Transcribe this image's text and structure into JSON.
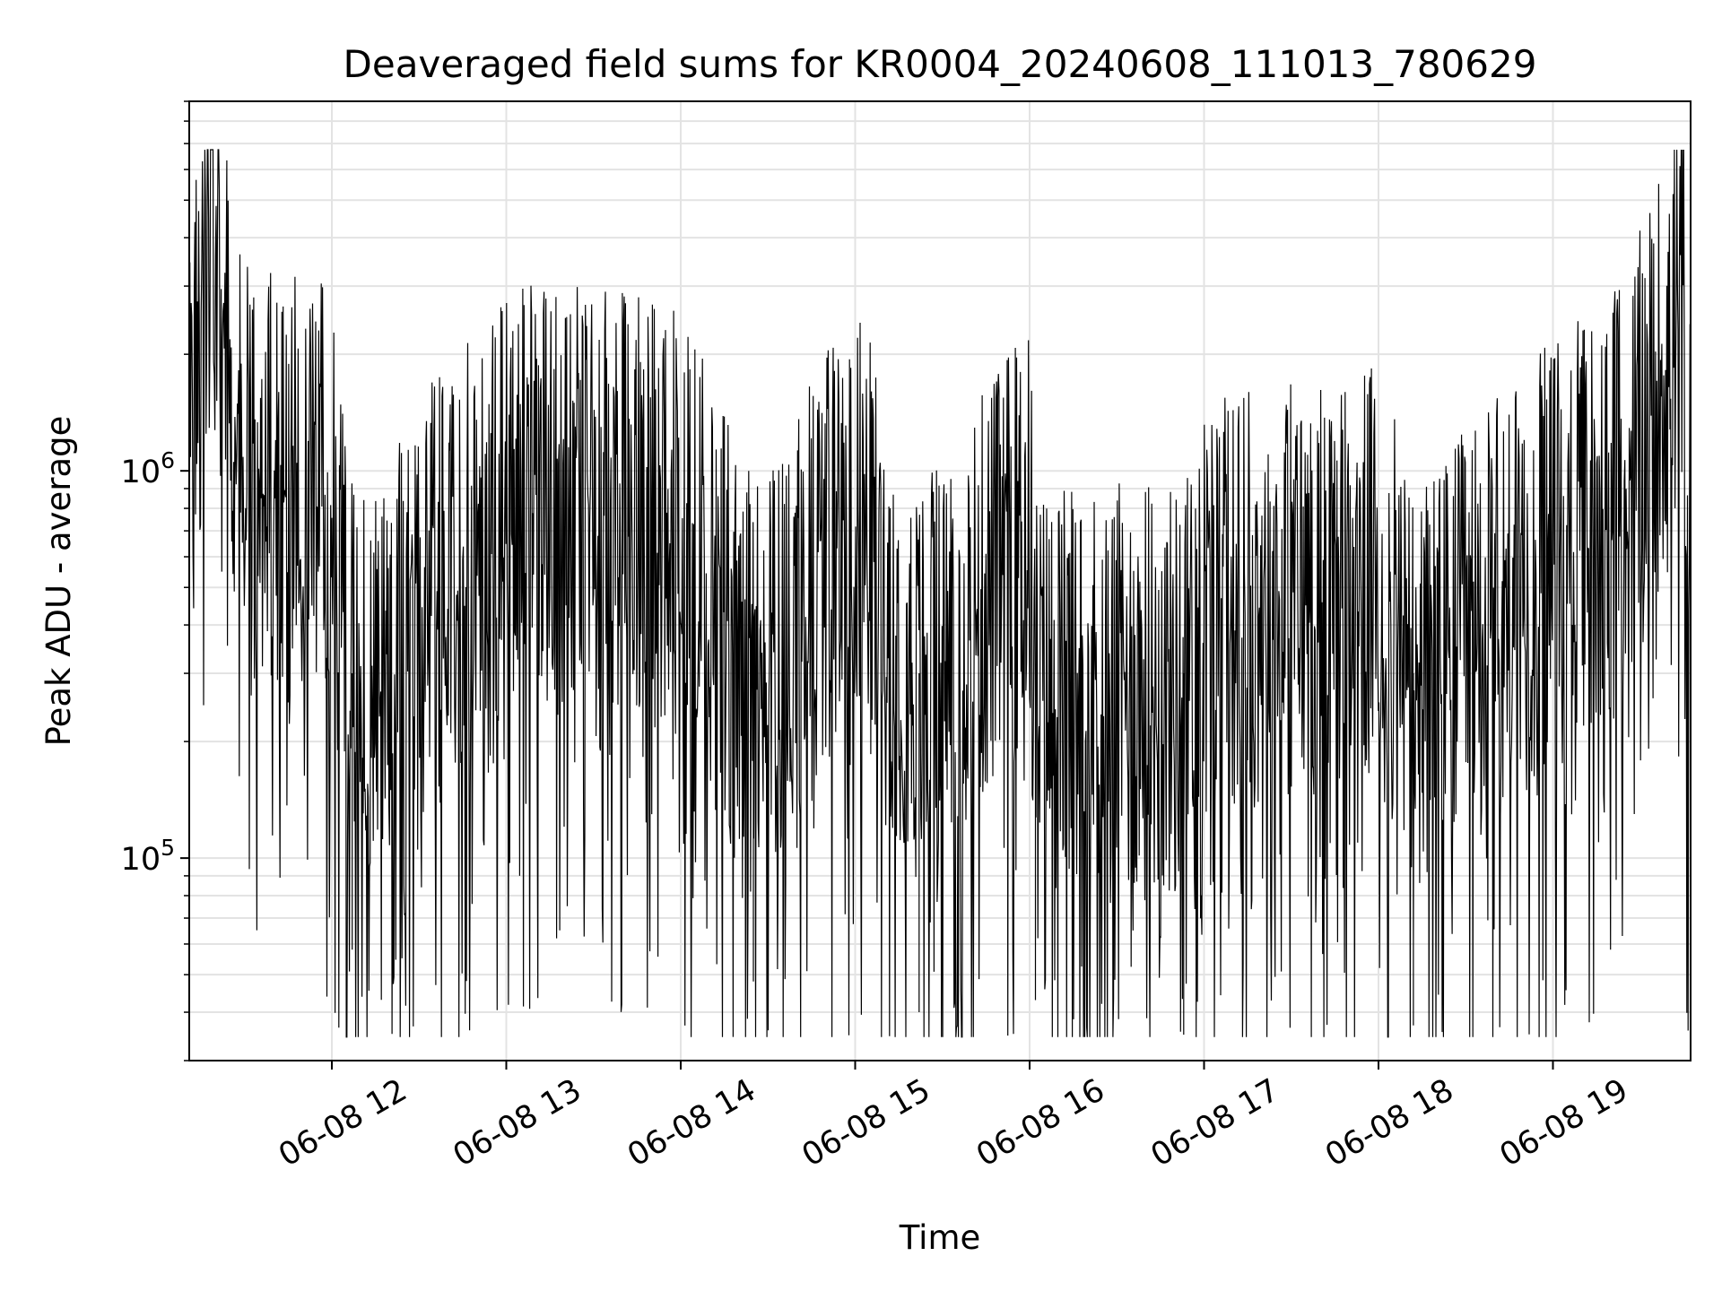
{
  "chart_data": {
    "type": "line",
    "title": "Deaveraged field sums for KR0004_20240608_111013_780629",
    "xlabel": "Time",
    "ylabel": "Peak ADU - average",
    "yscale": "log",
    "xlim": [
      "06-08 11:10:13",
      "06-08 19:48"
    ],
    "ylim": [
      30000,
      9000000
    ],
    "grid": true,
    "line_color": "#000000",
    "x_ticks": [
      "06-08 12",
      "06-08 13",
      "06-08 14",
      "06-08 15",
      "06-08 16",
      "06-08 17",
      "06-08 18",
      "06-08 19"
    ],
    "y_ticks": [
      {
        "base": "10",
        "exp": "5",
        "value": 100000
      },
      {
        "base": "10",
        "exp": "6",
        "value": 1000000
      }
    ],
    "series_summary": {
      "description_points": [
        [
          "06-08 11:10",
          900000
        ],
        [
          "06-08 11:18",
          6500000
        ],
        [
          "06-08 11:30",
          1100000
        ],
        [
          "06-08 12:00",
          1000000
        ],
        [
          "06-08 12:07",
          58000
        ],
        [
          "06-08 13:00",
          1000000
        ],
        [
          "06-08 14:00",
          900000
        ],
        [
          "06-08 14:25",
          48000
        ],
        [
          "06-08 15:00",
          900000
        ],
        [
          "06-08 15:22",
          40000
        ],
        [
          "06-08 16:00",
          800000
        ],
        [
          "06-08 16:02",
          43000
        ],
        [
          "06-08 16:53",
          35000
        ],
        [
          "06-08 17:00",
          500000
        ],
        [
          "06-08 18:00",
          600000
        ],
        [
          "06-08 18:12",
          37000
        ],
        [
          "06-08 19:00",
          700000
        ],
        [
          "06-08 19:25",
          1000000
        ],
        [
          "06-08 19:45",
          3300000
        ]
      ]
    }
  }
}
